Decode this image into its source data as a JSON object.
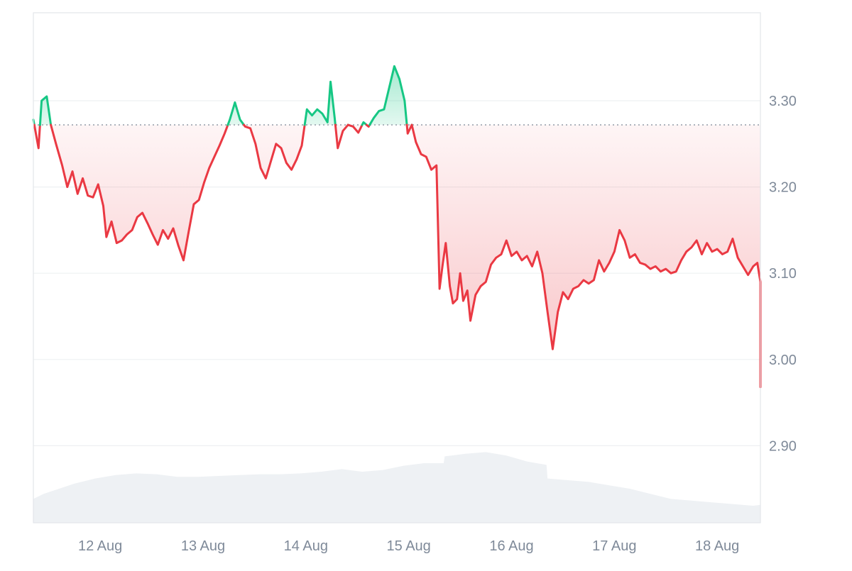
{
  "chart_data": {
    "type": "line",
    "title": "",
    "xlabel": "",
    "ylabel": "",
    "x_tick_labels": [
      "12 Aug",
      "13 Aug",
      "14 Aug",
      "15 Aug",
      "16 Aug",
      "17 Aug",
      "18 Aug"
    ],
    "y_tick_labels": [
      "2.90",
      "3.00",
      "3.10",
      "3.20",
      "3.30"
    ],
    "y_ticks": [
      2.9,
      3.0,
      3.1,
      3.2,
      3.3
    ],
    "ylim": [
      2.81,
      3.4
    ],
    "xlim": [
      0,
      7.07
    ],
    "baseline": 3.272,
    "grid": true,
    "legend": "none",
    "colors": {
      "up": "#16c784",
      "down": "#ea3943",
      "up_fill": "#16c784",
      "down_fill": "#ea3943",
      "volume": "#eef1f4",
      "grid": "#eef0f2",
      "axis_text": "#7f8a99",
      "baseline": "#9aa3ae",
      "frame": "#e3e6ea"
    },
    "series": [
      {
        "values": [
          [
            0.0,
            3.278
          ],
          [
            0.05,
            3.245
          ],
          [
            0.08,
            3.3
          ],
          [
            0.13,
            3.305
          ],
          [
            0.17,
            3.272
          ],
          [
            0.22,
            3.25
          ],
          [
            0.28,
            3.225
          ],
          [
            0.33,
            3.2
          ],
          [
            0.38,
            3.218
          ],
          [
            0.43,
            3.192
          ],
          [
            0.48,
            3.21
          ],
          [
            0.53,
            3.19
          ],
          [
            0.58,
            3.188
          ],
          [
            0.63,
            3.203
          ],
          [
            0.68,
            3.178
          ],
          [
            0.71,
            3.142
          ],
          [
            0.76,
            3.16
          ],
          [
            0.81,
            3.135
          ],
          [
            0.86,
            3.138
          ],
          [
            0.91,
            3.145
          ],
          [
            0.96,
            3.15
          ],
          [
            1.01,
            3.165
          ],
          [
            1.06,
            3.17
          ],
          [
            1.11,
            3.158
          ],
          [
            1.16,
            3.145
          ],
          [
            1.21,
            3.133
          ],
          [
            1.26,
            3.15
          ],
          [
            1.31,
            3.14
          ],
          [
            1.36,
            3.152
          ],
          [
            1.41,
            3.132
          ],
          [
            1.46,
            3.115
          ],
          [
            1.51,
            3.148
          ],
          [
            1.56,
            3.18
          ],
          [
            1.61,
            3.185
          ],
          [
            1.66,
            3.205
          ],
          [
            1.71,
            3.222
          ],
          [
            1.76,
            3.235
          ],
          [
            1.81,
            3.248
          ],
          [
            1.86,
            3.262
          ],
          [
            1.91,
            3.278
          ],
          [
            1.96,
            3.298
          ],
          [
            2.01,
            3.278
          ],
          [
            2.06,
            3.27
          ],
          [
            2.11,
            3.268
          ],
          [
            2.16,
            3.25
          ],
          [
            2.21,
            3.222
          ],
          [
            2.26,
            3.21
          ],
          [
            2.31,
            3.23
          ],
          [
            2.36,
            3.25
          ],
          [
            2.41,
            3.245
          ],
          [
            2.46,
            3.228
          ],
          [
            2.51,
            3.22
          ],
          [
            2.56,
            3.232
          ],
          [
            2.61,
            3.248
          ],
          [
            2.66,
            3.29
          ],
          [
            2.71,
            3.283
          ],
          [
            2.76,
            3.29
          ],
          [
            2.81,
            3.285
          ],
          [
            2.86,
            3.275
          ],
          [
            2.89,
            3.322
          ],
          [
            2.93,
            3.28
          ],
          [
            2.96,
            3.245
          ],
          [
            3.01,
            3.265
          ],
          [
            3.06,
            3.272
          ],
          [
            3.11,
            3.27
          ],
          [
            3.16,
            3.263
          ],
          [
            3.21,
            3.275
          ],
          [
            3.26,
            3.27
          ],
          [
            3.31,
            3.28
          ],
          [
            3.36,
            3.288
          ],
          [
            3.41,
            3.29
          ],
          [
            3.46,
            3.315
          ],
          [
            3.51,
            3.34
          ],
          [
            3.56,
            3.325
          ],
          [
            3.61,
            3.3
          ],
          [
            3.64,
            3.262
          ],
          [
            3.68,
            3.272
          ],
          [
            3.72,
            3.252
          ],
          [
            3.77,
            3.238
          ],
          [
            3.82,
            3.235
          ],
          [
            3.87,
            3.22
          ],
          [
            3.92,
            3.225
          ],
          [
            3.95,
            3.082
          ],
          [
            3.98,
            3.11
          ],
          [
            4.01,
            3.135
          ],
          [
            4.05,
            3.085
          ],
          [
            4.08,
            3.065
          ],
          [
            4.12,
            3.07
          ],
          [
            4.15,
            3.1
          ],
          [
            4.18,
            3.068
          ],
          [
            4.22,
            3.08
          ],
          [
            4.25,
            3.045
          ],
          [
            4.3,
            3.075
          ],
          [
            4.35,
            3.085
          ],
          [
            4.4,
            3.09
          ],
          [
            4.45,
            3.11
          ],
          [
            4.5,
            3.118
          ],
          [
            4.55,
            3.122
          ],
          [
            4.6,
            3.138
          ],
          [
            4.65,
            3.12
          ],
          [
            4.7,
            3.125
          ],
          [
            4.75,
            3.115
          ],
          [
            4.8,
            3.12
          ],
          [
            4.85,
            3.108
          ],
          [
            4.9,
            3.125
          ],
          [
            4.95,
            3.1
          ],
          [
            5.0,
            3.055
          ],
          [
            5.05,
            3.012
          ],
          [
            5.1,
            3.055
          ],
          [
            5.15,
            3.078
          ],
          [
            5.2,
            3.07
          ],
          [
            5.25,
            3.082
          ],
          [
            5.3,
            3.085
          ],
          [
            5.35,
            3.092
          ],
          [
            5.4,
            3.088
          ],
          [
            5.45,
            3.092
          ],
          [
            5.5,
            3.115
          ],
          [
            5.55,
            3.102
          ],
          [
            5.6,
            3.112
          ],
          [
            5.65,
            3.125
          ],
          [
            5.7,
            3.15
          ],
          [
            5.75,
            3.138
          ],
          [
            5.8,
            3.118
          ],
          [
            5.85,
            3.122
          ],
          [
            5.9,
            3.112
          ],
          [
            5.95,
            3.11
          ],
          [
            6.0,
            3.105
          ],
          [
            6.05,
            3.108
          ],
          [
            6.1,
            3.102
          ],
          [
            6.15,
            3.105
          ],
          [
            6.2,
            3.1
          ],
          [
            6.25,
            3.102
          ],
          [
            6.3,
            3.115
          ],
          [
            6.35,
            3.125
          ],
          [
            6.4,
            3.13
          ],
          [
            6.45,
            3.138
          ],
          [
            6.5,
            3.122
          ],
          [
            6.55,
            3.135
          ],
          [
            6.6,
            3.125
          ],
          [
            6.65,
            3.128
          ],
          [
            6.7,
            3.122
          ],
          [
            6.75,
            3.125
          ],
          [
            6.8,
            3.14
          ],
          [
            6.85,
            3.118
          ],
          [
            6.9,
            3.108
          ],
          [
            6.95,
            3.098
          ],
          [
            7.0,
            3.108
          ],
          [
            7.04,
            3.112
          ],
          [
            7.08,
            3.09
          ],
          [
            7.13,
            3.06
          ],
          [
            7.18,
            3.02
          ],
          [
            7.23,
            2.985
          ],
          [
            7.28,
            2.998
          ],
          [
            7.33,
            2.975
          ],
          [
            7.38,
            2.968
          ],
          [
            7.07,
            2.968
          ]
        ]
      }
    ],
    "volume_profile": [
      [
        0.0,
        0.28
      ],
      [
        0.1,
        0.34
      ],
      [
        0.25,
        0.4
      ],
      [
        0.4,
        0.46
      ],
      [
        0.6,
        0.52
      ],
      [
        0.8,
        0.56
      ],
      [
        1.0,
        0.58
      ],
      [
        1.2,
        0.57
      ],
      [
        1.4,
        0.54
      ],
      [
        1.6,
        0.54
      ],
      [
        1.8,
        0.55
      ],
      [
        2.0,
        0.56
      ],
      [
        2.2,
        0.57
      ],
      [
        2.4,
        0.57
      ],
      [
        2.6,
        0.58
      ],
      [
        2.8,
        0.6
      ],
      [
        3.0,
        0.63
      ],
      [
        3.2,
        0.6
      ],
      [
        3.4,
        0.62
      ],
      [
        3.6,
        0.67
      ],
      [
        3.8,
        0.7
      ],
      [
        3.99,
        0.7
      ],
      [
        4.0,
        0.78
      ],
      [
        4.2,
        0.81
      ],
      [
        4.4,
        0.83
      ],
      [
        4.6,
        0.79
      ],
      [
        4.8,
        0.72
      ],
      [
        4.99,
        0.68
      ],
      [
        5.0,
        0.52
      ],
      [
        5.2,
        0.5
      ],
      [
        5.4,
        0.48
      ],
      [
        5.6,
        0.44
      ],
      [
        5.8,
        0.4
      ],
      [
        6.0,
        0.34
      ],
      [
        6.2,
        0.28
      ],
      [
        6.4,
        0.26
      ],
      [
        6.6,
        0.24
      ],
      [
        6.8,
        0.22
      ],
      [
        7.0,
        0.2
      ],
      [
        7.2,
        0.21
      ],
      [
        7.3,
        0.26
      ],
      [
        7.4,
        0.32
      ]
    ]
  }
}
